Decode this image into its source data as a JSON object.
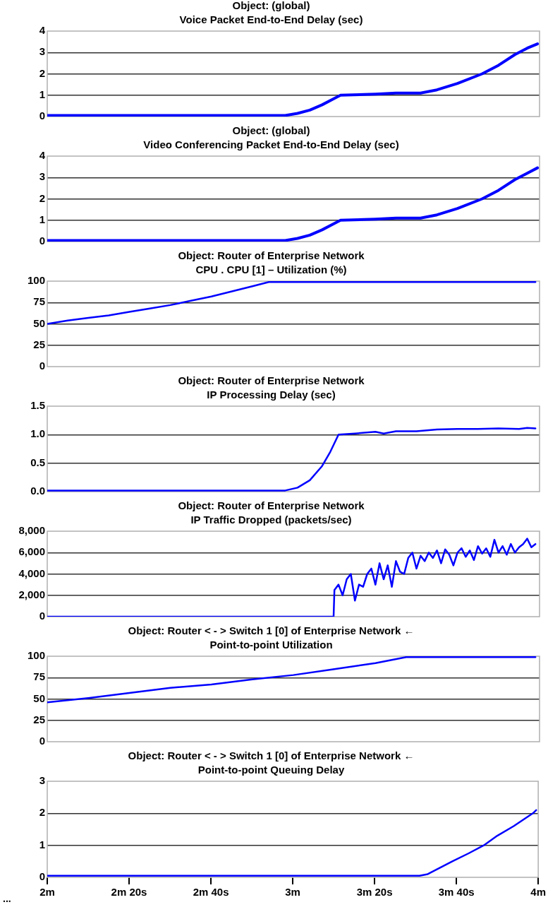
{
  "chart_data": [
    {
      "type": "line",
      "title": "Object: (global)",
      "subtitle": "Voice Packet End-to-End Delay (sec)",
      "xlim": [
        2,
        4
      ],
      "ylim": [
        0,
        4
      ],
      "yticks": [
        0,
        1,
        2,
        3,
        4
      ],
      "grid": "y",
      "legend": false,
      "tick_labels": "y",
      "series": [
        {
          "color": "#0000ff",
          "x": [
            2,
            2.9667,
            3.0167,
            3.0667,
            3.1167,
            3.1667,
            3.1917,
            3.3333,
            3.4167,
            3.5167,
            3.5833,
            3.6667,
            3.7667,
            3.8333,
            3.9,
            3.95,
            3.9917
          ],
          "values": [
            0.05,
            0.05,
            0.15,
            0.3,
            0.55,
            0.85,
            1.0,
            1.05,
            1.1,
            1.1,
            1.25,
            1.55,
            2.0,
            2.4,
            2.9,
            3.2,
            3.4
          ]
        }
      ]
    },
    {
      "type": "line",
      "title": "Object: (global)",
      "subtitle": "Video Conferencing Packet End-to-End Delay (sec)",
      "xlim": [
        2,
        4
      ],
      "ylim": [
        0,
        4
      ],
      "yticks": [
        0,
        1,
        2,
        3,
        4
      ],
      "grid": "y",
      "legend": false,
      "tick_labels": "y",
      "series": [
        {
          "color": "#0000ff",
          "x": [
            2,
            2.9667,
            3.0167,
            3.0667,
            3.1167,
            3.1667,
            3.1917,
            3.3333,
            3.4167,
            3.5167,
            3.5833,
            3.6667,
            3.7667,
            3.8333,
            3.9,
            3.95,
            3.9917
          ],
          "values": [
            0.05,
            0.05,
            0.15,
            0.3,
            0.55,
            0.85,
            1.0,
            1.05,
            1.1,
            1.1,
            1.25,
            1.55,
            2.0,
            2.4,
            2.9,
            3.2,
            3.45
          ]
        }
      ]
    },
    {
      "type": "line",
      "title": "Object: Router of Enterprise Network",
      "subtitle": "CPU . CPU [1] – Utilization (%)",
      "xlim": [
        2,
        4
      ],
      "ylim": [
        0,
        100
      ],
      "yticks": [
        0,
        25,
        50,
        75,
        100
      ],
      "grid": "y",
      "legend": false,
      "tick_labels": "y",
      "series": [
        {
          "color": "#0000ff",
          "x": [
            2,
            2.0833,
            2.1667,
            2.25,
            2.3333,
            2.4167,
            2.5,
            2.5833,
            2.6667,
            2.75,
            2.8333,
            2.9,
            3.9833
          ],
          "values": [
            50,
            54,
            57,
            60,
            64,
            68,
            72,
            77,
            82,
            88,
            94,
            99,
            99
          ]
        }
      ]
    },
    {
      "type": "line",
      "title": "Object: Router of Enterprise Network",
      "subtitle": "IP Processing Delay (sec)",
      "xlim": [
        2,
        4
      ],
      "ylim": [
        0,
        1.5
      ],
      "yticks": [
        {
          "value": 0,
          "label": "0.0"
        },
        {
          "value": 0.5,
          "label": "0.5"
        },
        {
          "value": 1,
          "label": "1.0"
        },
        {
          "value": 1.5,
          "label": "1.5"
        }
      ],
      "grid": "y",
      "legend": false,
      "tick_labels": "y",
      "series": [
        {
          "color": "#0000ff",
          "x": [
            2,
            2.9667,
            3.0167,
            3.0667,
            3.1167,
            3.15,
            3.1833,
            3.25,
            3.3333,
            3.3667,
            3.4167,
            3.5,
            3.5833,
            3.6667,
            3.75,
            3.8333,
            3.9167,
            3.95,
            3.9833
          ],
          "values": [
            0.02,
            0.02,
            0.07,
            0.2,
            0.45,
            0.7,
            1.0,
            1.02,
            1.05,
            1.02,
            1.06,
            1.06,
            1.09,
            1.1,
            1.1,
            1.11,
            1.1,
            1.12,
            1.11
          ]
        }
      ]
    },
    {
      "type": "line",
      "title": "Object: Router of Enterprise Network",
      "subtitle": "IP Traffic Dropped (packets/sec)",
      "xlim": [
        2,
        4
      ],
      "ylim": [
        0,
        8000
      ],
      "yticks": [
        0,
        {
          "value": 2000,
          "label": "2,000"
        },
        {
          "value": 4000,
          "label": "4,000"
        },
        {
          "value": 6000,
          "label": "6,000"
        },
        {
          "value": 8000,
          "label": "8,000"
        }
      ],
      "grid": "y",
      "legend": false,
      "tick_labels": "y",
      "series": [
        {
          "color": "#0000ff",
          "x": [
            2,
            3.1633,
            3.1667,
            3.1833,
            3.2,
            3.2167,
            3.2333,
            3.25,
            3.2667,
            3.2833,
            3.3,
            3.3167,
            3.3333,
            3.35,
            3.3667,
            3.3833,
            3.4,
            3.4167,
            3.4333,
            3.45,
            3.4667,
            3.4833,
            3.5,
            3.5167,
            3.5333,
            3.55,
            3.5667,
            3.5833,
            3.6,
            3.6167,
            3.6333,
            3.65,
            3.6667,
            3.6833,
            3.7,
            3.7167,
            3.7333,
            3.75,
            3.7667,
            3.7833,
            3.8,
            3.8167,
            3.8333,
            3.85,
            3.8667,
            3.8833,
            3.9,
            3.9167,
            3.9333,
            3.95,
            3.9667,
            3.9833
          ],
          "values": [
            0,
            0,
            2500,
            3000,
            2000,
            3500,
            4000,
            1500,
            3000,
            2800,
            4000,
            4500,
            3000,
            5000,
            3500,
            4800,
            2800,
            5200,
            4200,
            4000,
            5500,
            6000,
            4500,
            5700,
            5200,
            6000,
            5500,
            6200,
            5000,
            6300,
            5800,
            4800,
            6000,
            6400,
            5600,
            6200,
            5300,
            6600,
            5900,
            6400,
            5600,
            7200,
            6000,
            6600,
            5800,
            6800,
            6000,
            6500,
            6800,
            7300,
            6500,
            6800
          ]
        }
      ]
    },
    {
      "type": "line",
      "title": "Object: Router < - > Switch 1 [0] of Enterprise Network ←",
      "subtitle": "Point-to-point Utilization",
      "xlim": [
        2,
        4
      ],
      "ylim": [
        0,
        100
      ],
      "yticks": [
        0,
        25,
        50,
        75,
        100
      ],
      "grid": "y",
      "legend": false,
      "tick_labels": "y",
      "series": [
        {
          "color": "#0000ff",
          "x": [
            2,
            2.1667,
            2.3333,
            2.5,
            2.6667,
            2.8333,
            3,
            3.1667,
            3.3333,
            3.4583,
            3.9833
          ],
          "values": [
            46,
            51,
            57,
            63,
            67,
            73,
            78,
            85,
            92,
            99,
            99
          ]
        }
      ]
    },
    {
      "type": "line",
      "title": "Object: Router < - > Switch 1 [0] of Enterprise Network ←",
      "subtitle": "Point-to-point Queuing Delay",
      "xlim": [
        2,
        4
      ],
      "xticks": [
        {
          "value": 2,
          "label": "2m"
        },
        {
          "value": 2.3333,
          "label": "2m 20s"
        },
        {
          "value": 2.6667,
          "label": "2m 40s"
        },
        {
          "value": 3,
          "label": "3m"
        },
        {
          "value": 3.3333,
          "label": "3m 20s"
        },
        {
          "value": 3.6667,
          "label": "3m 40s"
        },
        {
          "value": 4,
          "label": "4m"
        }
      ],
      "ylim": [
        0,
        3
      ],
      "yticks": [
        0,
        1,
        2,
        3
      ],
      "grid": "y",
      "legend": false,
      "annotations": [
        "..."
      ],
      "series": [
        {
          "color": "#0000ff",
          "x": [
            2,
            3.5167,
            3.55,
            3.6,
            3.65,
            3.7167,
            3.7783,
            3.8333,
            3.9,
            3.9783,
            3.9917
          ],
          "values": [
            0.05,
            0.05,
            0.1,
            0.3,
            0.5,
            0.75,
            1.0,
            1.3,
            1.6,
            2.0,
            2.1
          ]
        }
      ]
    }
  ]
}
